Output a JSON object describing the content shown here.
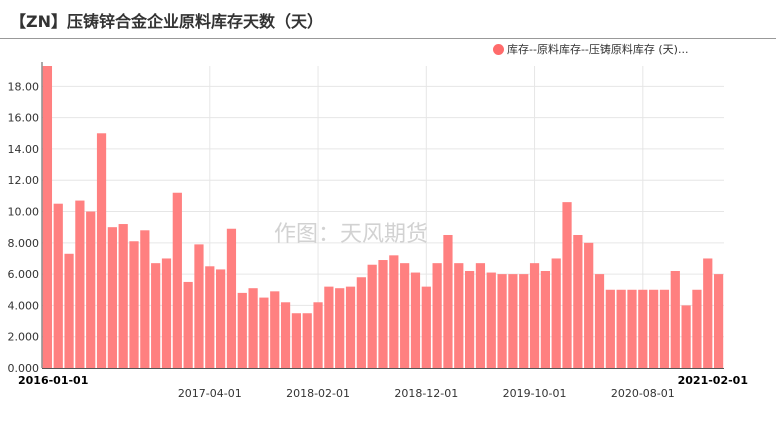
{
  "title": "【ZN】压铸锌合金企业原料库存天数（天）",
  "watermark": "作图：天风期货",
  "legend": {
    "label": "库存--原料库存--压铸原料库存 (天)...",
    "color": "#ff6b6b"
  },
  "chart_data": {
    "type": "bar",
    "series": [
      {
        "name": "库存--原料库存--压铸原料库存 (天)...",
        "color": "#ff8080",
        "values": [
          19.3,
          10.5,
          7.3,
          10.7,
          10.0,
          15.0,
          9.0,
          9.2,
          8.1,
          8.8,
          6.7,
          7.0,
          11.2,
          5.5,
          7.9,
          6.5,
          6.3,
          8.9,
          4.8,
          5.1,
          4.5,
          4.9,
          4.2,
          3.5,
          3.5,
          4.2,
          5.2,
          5.1,
          5.2,
          5.8,
          6.6,
          6.9,
          7.2,
          6.7,
          6.1,
          5.2,
          6.7,
          8.5,
          6.7,
          6.2,
          6.7,
          6.1,
          6.0,
          6.0,
          6.0,
          6.7,
          6.2,
          7.0,
          10.6,
          8.5,
          8.0,
          6.0,
          5.0,
          5.0,
          5.0,
          5.0,
          5.0,
          5.0,
          6.2,
          4.0,
          5.0,
          7.0,
          6.0
        ]
      }
    ],
    "x_start": "2016-01-01",
    "x_end": "2021-02-01",
    "x_tick_labels": [
      {
        "label": "2016-01-01",
        "index": 0,
        "bold": true
      },
      {
        "label": "2017-04-01",
        "index": 15,
        "bold": false
      },
      {
        "label": "2018-02-01",
        "index": 25,
        "bold": false
      },
      {
        "label": "2018-12-01",
        "index": 35,
        "bold": false
      },
      {
        "label": "2019-10-01",
        "index": 45,
        "bold": false
      },
      {
        "label": "2020-08-01",
        "index": 55,
        "bold": false
      },
      {
        "label": "2021-02-01",
        "index": 62,
        "bold": true
      }
    ],
    "y_ticks": [
      "0.000",
      "2.000",
      "4.000",
      "6.000",
      "8.000",
      "10.00",
      "12.00",
      "14.00",
      "16.00",
      "18.00"
    ],
    "ylim": [
      0,
      19.3
    ],
    "grid": true
  }
}
